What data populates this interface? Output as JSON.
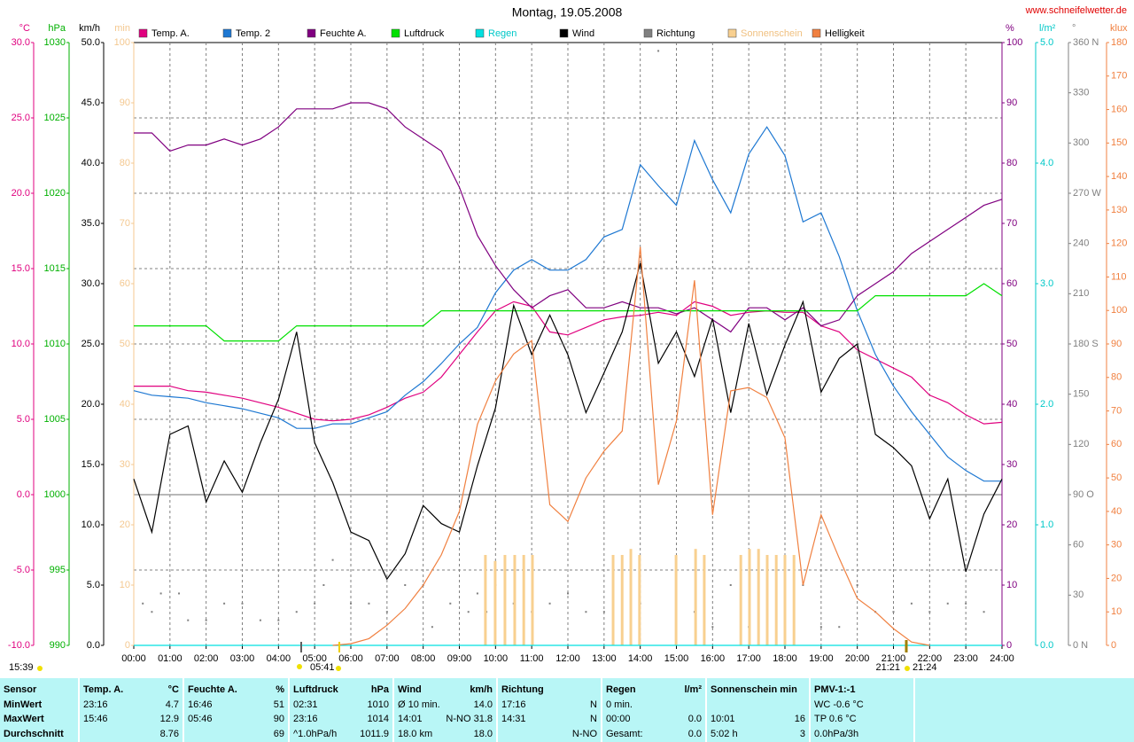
{
  "chart_data": {
    "type": "line",
    "title": "Montag, 19.05.2008",
    "site": "www.schneifelwetter.de",
    "grid": true,
    "xlim": [
      0,
      24
    ],
    "xticks": [
      {
        "value": 0,
        "label": "00:00"
      },
      {
        "value": 1,
        "label": "01:00"
      },
      {
        "value": 2,
        "label": "02:00"
      },
      {
        "value": 3,
        "label": "03:00"
      },
      {
        "value": 4,
        "label": "04:00"
      },
      {
        "value": 5,
        "label": "05:00"
      },
      {
        "value": 6,
        "label": "06:00"
      },
      {
        "value": 7,
        "label": "07:00"
      },
      {
        "value": 8,
        "label": "08:00"
      },
      {
        "value": 9,
        "label": "09:00"
      },
      {
        "value": 10,
        "label": "10:00"
      },
      {
        "value": 11,
        "label": "11:00"
      },
      {
        "value": 12,
        "label": "12:00"
      },
      {
        "value": 13,
        "label": "13:00"
      },
      {
        "value": 14,
        "label": "14:00"
      },
      {
        "value": 15,
        "label": "15:00"
      },
      {
        "value": 16,
        "label": "16:00"
      },
      {
        "value": 17,
        "label": "17:00"
      },
      {
        "value": 18,
        "label": "18:00"
      },
      {
        "value": 19,
        "label": "19:00"
      },
      {
        "value": 20,
        "label": "20:00"
      },
      {
        "value": 21,
        "label": "21:00"
      },
      {
        "value": 22,
        "label": "22:00"
      },
      {
        "value": 23,
        "label": "23:00"
      },
      {
        "value": 24,
        "label": "24:00"
      }
    ],
    "x": [
      0,
      0.5,
      1,
      1.5,
      2,
      2.5,
      3,
      3.5,
      4,
      4.5,
      5,
      5.5,
      6,
      6.5,
      7,
      7.5,
      8,
      8.5,
      9,
      9.5,
      10,
      10.5,
      11,
      11.5,
      12,
      12.5,
      13,
      13.5,
      14,
      14.5,
      15,
      15.5,
      16,
      16.5,
      17,
      17.5,
      18,
      18.5,
      19,
      19.5,
      20,
      20.5,
      21,
      21.5,
      22,
      22.5,
      23,
      23.5,
      24
    ],
    "axes": [
      {
        "unit": "°C",
        "color": "#e0007f",
        "lim": [
          -10,
          30
        ],
        "ticks": [
          {
            "value": -10,
            "label": "-10.0"
          },
          {
            "value": -5,
            "label": "-5.0"
          },
          {
            "value": 0,
            "label": "0.0"
          },
          {
            "value": 5,
            "label": "5.0"
          },
          {
            "value": 10,
            "label": "10.0"
          },
          {
            "value": 15,
            "label": "15.0"
          },
          {
            "value": 20,
            "label": "20.0"
          },
          {
            "value": 25,
            "label": "25.0"
          },
          {
            "value": 30,
            "label": "30.0"
          }
        ]
      },
      {
        "unit": "hPa",
        "color": "#00b000",
        "lim": [
          990,
          1030
        ],
        "ticks": [
          990,
          995,
          1000,
          1005,
          1010,
          1015,
          1020,
          1025,
          1030
        ]
      },
      {
        "unit": "km/h",
        "color": "#000000",
        "lim": [
          0,
          50
        ],
        "ticks": [
          {
            "value": 0,
            "label": "0.0"
          },
          {
            "value": 5,
            "label": "5.0"
          },
          {
            "value": 10,
            "label": "10.0"
          },
          {
            "value": 15,
            "label": "15.0"
          },
          {
            "value": 20,
            "label": "20.0"
          },
          {
            "value": 25,
            "label": "25.0"
          },
          {
            "value": 30,
            "label": "30.0"
          },
          {
            "value": 35,
            "label": "35.0"
          },
          {
            "value": 40,
            "label": "40.0"
          },
          {
            "value": 45,
            "label": "45.0"
          },
          {
            "value": 50,
            "label": "50.0"
          }
        ]
      },
      {
        "unit": "min",
        "color": "#f4c890",
        "lim": [
          0,
          100
        ],
        "ticks": [
          0,
          10,
          20,
          30,
          40,
          50,
          60,
          70,
          80,
          90,
          100
        ]
      },
      {
        "unit": "%",
        "color": "#800080",
        "lim": [
          0,
          100
        ],
        "ticks": [
          0,
          10,
          20,
          30,
          40,
          50,
          60,
          70,
          80,
          90,
          100
        ]
      },
      {
        "unit": "l/m²",
        "color": "#00c8c8",
        "lim": [
          0,
          5
        ],
        "ticks": [
          {
            "value": 0,
            "label": "0.0"
          },
          {
            "value": 1,
            "label": "1.0"
          },
          {
            "value": 2,
            "label": "2.0"
          },
          {
            "value": 3,
            "label": "3.0"
          },
          {
            "value": 4,
            "label": "4.0"
          },
          {
            "value": 5,
            "label": "5.0"
          }
        ]
      },
      {
        "unit": "°",
        "color": "#808080",
        "lim": [
          0,
          360
        ],
        "ticks": [
          {
            "value": 0,
            "label": "0 N"
          },
          30,
          60,
          {
            "value": 90,
            "label": "90 O"
          },
          120,
          150,
          {
            "value": 180,
            "label": "180 S"
          },
          210,
          240,
          {
            "value": 270,
            "label": "270 W"
          },
          300,
          330,
          {
            "value": 360,
            "label": "360 N"
          }
        ]
      },
      {
        "unit": "klux",
        "color": "#f08040",
        "lim": [
          0,
          180
        ],
        "ticks": [
          0,
          10,
          20,
          30,
          40,
          50,
          60,
          70,
          80,
          90,
          100,
          110,
          120,
          130,
          140,
          150,
          160,
          170,
          180
        ]
      }
    ],
    "series": [
      {
        "name": "Temp. A.",
        "color": "#e0007f",
        "axis": 0,
        "style": "line",
        "values": [
          7.2,
          7.2,
          7.2,
          6.9,
          6.8,
          6.6,
          6.4,
          6.1,
          5.8,
          5.4,
          5.0,
          4.9,
          5.0,
          5.3,
          5.8,
          6.4,
          6.8,
          7.8,
          9.3,
          10.8,
          12.2,
          12.8,
          12.5,
          10.8,
          10.6,
          11.1,
          11.6,
          11.8,
          11.9,
          12.1,
          11.9,
          12.8,
          12.5,
          11.9,
          12.1,
          12.2,
          12.1,
          12.1,
          11.2,
          10.8,
          9.6,
          9.0,
          8.4,
          7.8,
          6.6,
          6.1,
          5.3,
          4.7,
          4.8
        ]
      },
      {
        "name": "Temp. 2",
        "color": "#1e78d2",
        "axis": 0,
        "style": "line",
        "values": [
          6.9,
          6.6,
          6.5,
          6.4,
          6.1,
          5.9,
          5.7,
          5.4,
          5.1,
          4.4,
          4.4,
          4.7,
          4.7,
          5.1,
          5.5,
          6.6,
          7.5,
          8.7,
          10.0,
          11.1,
          13.4,
          14.9,
          15.6,
          14.9,
          14.9,
          15.6,
          17.1,
          17.6,
          21.9,
          20.5,
          19.2,
          23.5,
          20.9,
          18.7,
          22.6,
          24.4,
          22.5,
          18.1,
          18.7,
          15.8,
          12.2,
          9.3,
          7.2,
          5.5,
          4.0,
          2.5,
          1.6,
          0.9,
          0.9
        ]
      },
      {
        "name": "Feuchte A.",
        "color": "#800080",
        "axis": 4,
        "style": "line",
        "values": [
          85,
          85,
          82,
          83,
          83,
          84,
          83,
          84,
          86,
          89,
          89,
          89,
          90,
          90,
          89,
          86,
          84,
          82,
          76,
          68,
          63,
          59,
          56,
          58,
          59,
          56,
          56,
          57,
          56,
          56,
          55,
          56,
          54,
          52,
          56,
          56,
          54,
          56,
          53,
          54,
          58,
          60,
          62,
          65,
          67,
          69,
          71,
          73,
          74
        ]
      },
      {
        "name": "Luftdruck",
        "color": "#00e000",
        "axis": 1,
        "style": "line",
        "values": [
          1011.2,
          1011.2,
          1011.2,
          1011.2,
          1011.2,
          1010.2,
          1010.2,
          1010.2,
          1010.2,
          1011.2,
          1011.2,
          1011.2,
          1011.2,
          1011.2,
          1011.2,
          1011.2,
          1011.2,
          1012.2,
          1012.2,
          1012.2,
          1012.2,
          1012.2,
          1012.2,
          1012.2,
          1012.2,
          1012.2,
          1012.2,
          1012.2,
          1012.2,
          1012.2,
          1012.2,
          1012.2,
          1012.2,
          1012.2,
          1012.2,
          1012.2,
          1012.2,
          1012.2,
          1012.2,
          1012.2,
          1012.2,
          1013.2,
          1013.2,
          1013.2,
          1013.2,
          1013.2,
          1013.2,
          1014,
          1013.2
        ]
      },
      {
        "name": "Regen",
        "color": "#00e0e0",
        "axis": 5,
        "style": "line",
        "x": [
          0,
          24
        ],
        "values": [
          0,
          0
        ]
      },
      {
        "name": "Wind",
        "color": "#000000",
        "axis": 2,
        "style": "line",
        "values": [
          13.8,
          9.4,
          17.5,
          18.2,
          11.9,
          15.3,
          12.7,
          16.8,
          20.4,
          26.0,
          16.8,
          13.5,
          9.4,
          8.7,
          5.5,
          7.6,
          11.6,
          10.1,
          9.4,
          14.9,
          19.7,
          28.2,
          24.1,
          27.4,
          24.1,
          19.3,
          22.6,
          26.0,
          31.7,
          23.4,
          26.0,
          22.3,
          27.1,
          19.3,
          26.7,
          20.8,
          24.9,
          28.5,
          21.0,
          23.8,
          25.0,
          17.5,
          16.4,
          14.9,
          10.5,
          13.8,
          6.1,
          10.9,
          13.8
        ]
      },
      {
        "name": "Richtung",
        "color": "#808080",
        "axis": 6,
        "style": "dots",
        "x": [
          0.25,
          0.5,
          0.75,
          1.25,
          1.5,
          2,
          2.5,
          3,
          3.5,
          4,
          4.5,
          5,
          5.25,
          5.5,
          6,
          6.5,
          7,
          7.5,
          8,
          8.25,
          8.75,
          9.25,
          9.5,
          9.75,
          10,
          10.5,
          11,
          11.5,
          12,
          12.5,
          13,
          13.5,
          14,
          14.5,
          15,
          15.5,
          16,
          16.5,
          17,
          17.5,
          18,
          18.5,
          19,
          19.5,
          20,
          20.5,
          21,
          21.5,
          22,
          22.5,
          23,
          23.5
        ],
        "values": [
          25,
          20,
          31,
          31,
          15,
          15,
          25,
          25,
          15,
          15,
          20,
          25,
          36,
          51,
          25,
          25,
          20,
          36,
          36,
          11,
          25,
          20,
          31,
          20,
          36,
          25,
          20,
          25,
          31,
          20,
          20,
          36,
          25,
          355,
          36,
          20,
          11,
          36,
          11,
          5,
          11,
          36,
          11,
          11,
          36,
          20,
          20,
          25,
          20,
          25,
          25,
          20
        ]
      },
      {
        "name": "Sonnenschein",
        "color": "#f8d090",
        "axis": 3,
        "style": "bars",
        "x": [
          9.72,
          9.99,
          10.26,
          10.53,
          10.78,
          11.02,
          13.25,
          13.5,
          13.74,
          13.98,
          14.99,
          15.53,
          15.77,
          16.78,
          17.02,
          17.27,
          17.51,
          17.76,
          18.0,
          18.25
        ],
        "values": [
          15,
          14,
          15,
          15,
          15,
          15,
          15,
          15,
          16,
          15,
          15,
          16,
          15,
          15,
          16,
          16,
          15,
          15,
          15,
          15
        ]
      },
      {
        "name": "Helligkeit",
        "color": "#f08040",
        "axis": 7,
        "style": "line",
        "values": [
          null,
          null,
          null,
          null,
          null,
          null,
          null,
          null,
          null,
          null,
          null,
          0,
          0.5,
          2,
          6,
          11,
          18,
          27,
          40,
          66,
          79,
          87,
          91,
          42,
          37,
          50,
          58,
          64,
          119,
          48,
          67,
          109,
          39,
          76,
          77,
          74,
          62,
          18,
          39,
          26,
          14,
          10,
          5,
          1,
          0,
          null,
          null,
          null,
          null
        ]
      }
    ],
    "sun": {
      "updated": "15:39",
      "sunrise": "05:41",
      "sunset_a": "21:21",
      "sunset_b": "21:24"
    }
  },
  "table": {
    "header": [
      {
        "l": "Sensor"
      },
      {
        "l": "Temp. A.",
        "r": "°C"
      },
      {
        "l": "Feuchte A.",
        "r": "%"
      },
      {
        "l": "Luftdruck",
        "r": "hPa"
      },
      {
        "l": "Wind",
        "r": "km/h"
      },
      {
        "l": "Richtung"
      },
      {
        "l": "Regen",
        "r": "l/m²"
      },
      {
        "l": "Sonnenschein min"
      },
      {
        "l": "PMV-1:-1"
      }
    ],
    "rows": [
      [
        {
          "l": "MinWert"
        },
        {
          "l": "23:16",
          "r": "4.7"
        },
        {
          "l": "16:46",
          "r": "51"
        },
        {
          "l": "02:31",
          "r": "1010"
        },
        {
          "l": "Ø 10 min.",
          "r": "14.0"
        },
        {
          "l": "17:16",
          "r": "N"
        },
        {
          "l": "0 min."
        },
        {},
        {
          "l": "WC -0.6 °C"
        }
      ],
      [
        {
          "l": "MaxWert"
        },
        {
          "l": "15:46",
          "r": "12.9"
        },
        {
          "l": "05:46",
          "r": "90"
        },
        {
          "l": "23:16",
          "r": "1014"
        },
        {
          "l": "14:01",
          "r": "N-NO 31.8"
        },
        {
          "l": "14:31",
          "r": "N"
        },
        {
          "l": "00:00",
          "r": "0.0"
        },
        {
          "l": "10:01",
          "r": "16"
        },
        {
          "l": "TP 0.6 °C"
        }
      ],
      [
        {
          "l": "Durchschnitt"
        },
        {
          "r": "8.76"
        },
        {
          "r": "69"
        },
        {
          "l": "^1.0hPa/h",
          "r": "1011.9"
        },
        {
          "l": "18.0 km",
          "r": "18.0"
        },
        {
          "r": "N-NO"
        },
        {
          "l": "Gesamt:",
          "r": "0.0"
        },
        {
          "l": "5:02 h",
          "r": "3"
        },
        {
          "l": "0.0hPa/3h"
        }
      ]
    ]
  }
}
